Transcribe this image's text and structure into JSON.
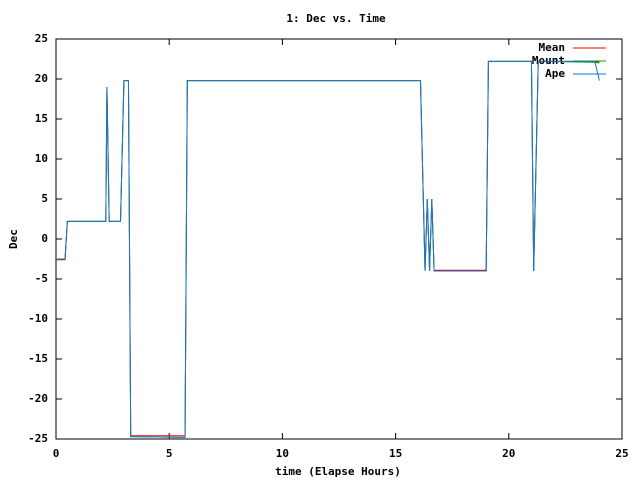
{
  "chart_data": {
    "type": "line",
    "title": "1: Dec vs. Time",
    "x_label": "time (Elapse Hours)",
    "y_label": "Dec",
    "x": [
      0,
      0.4,
      0.5,
      2.2,
      2.25,
      2.35,
      2.85,
      3.0,
      3.2,
      3.3,
      5.7,
      5.8,
      16.1,
      16.3,
      16.4,
      16.5,
      16.6,
      16.7,
      19.0,
      19.1,
      21.0,
      21.1,
      21.3,
      23.8,
      24.0
    ],
    "series": [
      {
        "name": "Mean",
        "color": "#ff0000",
        "values": [
          -2.6,
          -2.6,
          2.2,
          2.2,
          19,
          2.2,
          2.2,
          19.8,
          19.8,
          -24.6,
          -24.6,
          19.8,
          19.8,
          -4,
          5,
          -4,
          5,
          -3.9,
          -3.9,
          22.2,
          22.2,
          -4,
          22.2,
          22.2,
          22.1
        ]
      },
      {
        "name": "Mount",
        "color": "#00a000",
        "values": [
          -2.5,
          -2.5,
          2.2,
          2.2,
          19,
          2.2,
          2.2,
          19.8,
          19.8,
          -24.7,
          -24.8,
          19.8,
          19.8,
          -4,
          5,
          -4,
          5,
          -4,
          -4,
          22.2,
          22.2,
          -4,
          22.2,
          22.1,
          22.0
        ]
      },
      {
        "name": "Ape",
        "color": "#1a75d1",
        "values": [
          -2.5,
          -2.5,
          2.2,
          2.2,
          19,
          2.2,
          2.2,
          19.8,
          19.8,
          -24.7,
          -24.8,
          19.8,
          19.8,
          -4,
          5,
          -4,
          5,
          -4,
          -4,
          22.2,
          22.2,
          -4,
          22.2,
          22.2,
          19.8
        ]
      }
    ],
    "xlim": [
      0,
      25
    ],
    "ylim": [
      -25,
      25
    ],
    "xticks": [
      0,
      5,
      10,
      15,
      20,
      25
    ],
    "yticks": [
      -25,
      -20,
      -15,
      -10,
      -5,
      0,
      5,
      10,
      15,
      20,
      25
    ],
    "legend": "top-right",
    "grid": false
  }
}
